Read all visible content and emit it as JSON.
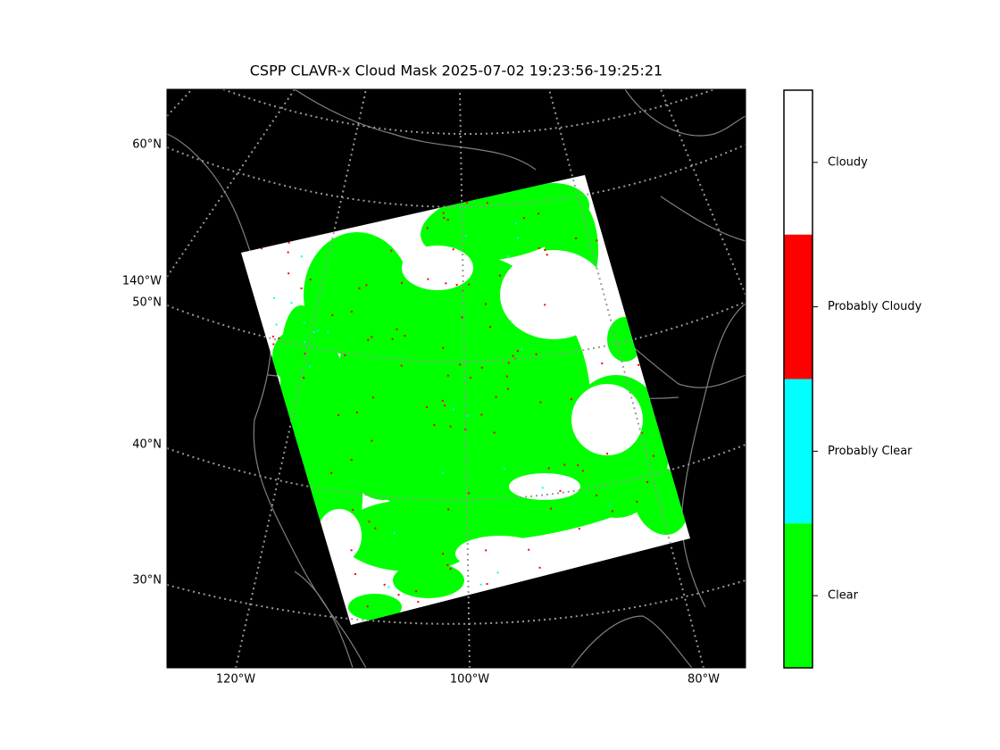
{
  "title": "CSPP CLAVR-x Cloud Mask 2025-07-02 19:23:56-19:25:21",
  "map": {
    "left_labels": [
      "60°N",
      "140°W",
      "50°N",
      "40°N",
      "30°N"
    ],
    "bottom_labels": [
      "120°W",
      "100°W",
      "80°W"
    ],
    "background": "#000000",
    "graticule_color": "#999999",
    "coast_color": "#808080"
  },
  "legend": {
    "items": [
      {
        "label": "Cloudy",
        "color": "#ffffff"
      },
      {
        "label": "Probably Cloudy",
        "color": "#ff0000"
      },
      {
        "label": "Probably Clear",
        "color": "#00ffff"
      },
      {
        "label": "Clear",
        "color": "#00ff00"
      }
    ]
  }
}
